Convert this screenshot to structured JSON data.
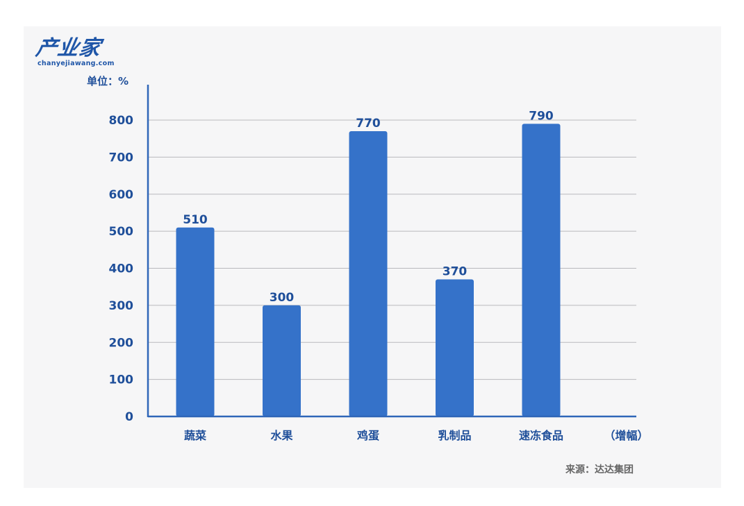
{
  "logo": {
    "main": "产业家",
    "sub": "chanyejiawang.com"
  },
  "source_label": "来源：达达集团",
  "chart_data": {
    "type": "bar",
    "ylabel": "单位：%",
    "categories": [
      "蔬菜",
      "水果",
      "鸡蛋",
      "乳制品",
      "速冻食品"
    ],
    "values": [
      510,
      300,
      770,
      370,
      790
    ],
    "legend_label": "（增幅）",
    "ylim": [
      0,
      800
    ],
    "yticks": [
      0,
      100,
      200,
      300,
      400,
      500,
      600,
      700,
      800
    ],
    "grid": true,
    "bar_color": "#3572c9"
  }
}
